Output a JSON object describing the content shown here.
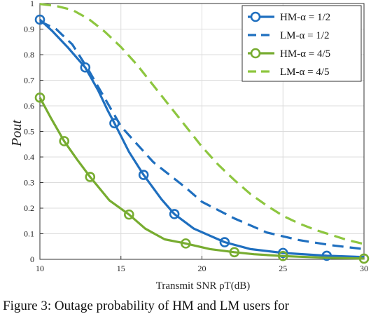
{
  "chart_data": {
    "type": "line",
    "title": "",
    "xlabel": "Transmit SNR ρT(dB)",
    "ylabel": "Pout",
    "xlim": [
      10,
      30
    ],
    "ylim": [
      0,
      1
    ],
    "xticks": [
      10,
      15,
      20,
      25,
      30
    ],
    "yticks": [
      0,
      0.1,
      0.2,
      0.3,
      0.4,
      0.5,
      0.6,
      0.7,
      0.8,
      0.9,
      1
    ],
    "grid": true,
    "legend_position": "top-right",
    "series": [
      {
        "name": "HM-α = 1/2",
        "color": "#1f6fbf",
        "style": "solid",
        "marker": "circle",
        "x": [
          10,
          10.8,
          11.7,
          12.8,
          13.6,
          14.2,
          14.6,
          15.5,
          16.4,
          17.5,
          18.3,
          19.5,
          21.4,
          23,
          25,
          27.7,
          30
        ],
        "y": [
          0.937,
          0.89,
          0.83,
          0.75,
          0.66,
          0.58,
          0.532,
          0.42,
          0.33,
          0.235,
          0.177,
          0.12,
          0.067,
          0.04,
          0.025,
          0.014,
          0.009
        ]
      },
      {
        "name": "LM-α = 1/2",
        "color": "#1f6fbf",
        "style": "dashed",
        "marker": "none",
        "x": [
          10,
          11,
          12,
          13,
          14,
          15,
          16,
          17,
          18,
          19,
          20,
          22,
          24,
          26,
          28,
          30
        ],
        "y": [
          0.93,
          0.9,
          0.84,
          0.74,
          0.63,
          0.52,
          0.45,
          0.38,
          0.33,
          0.28,
          0.225,
          0.16,
          0.105,
          0.075,
          0.055,
          0.04
        ]
      },
      {
        "name": "HM-α = 4/5",
        "color": "#77ac30",
        "style": "solid",
        "marker": "circle",
        "x": [
          10,
          10.7,
          11.5,
          12.3,
          13.1,
          14.3,
          15.5,
          16.5,
          17.7,
          19,
          20.5,
          22,
          23.2,
          25,
          27.7,
          30
        ],
        "y": [
          0.632,
          0.55,
          0.462,
          0.39,
          0.322,
          0.23,
          0.175,
          0.12,
          0.078,
          0.062,
          0.04,
          0.028,
          0.02,
          0.013,
          0.006,
          0.003
        ]
      },
      {
        "name": "LM-α = 4/5",
        "color": "#8dc63f",
        "style": "dashed",
        "marker": "none",
        "x": [
          10,
          11,
          12,
          13,
          14,
          15,
          16,
          17,
          18,
          19,
          20,
          21,
          22,
          23,
          24,
          25,
          26,
          27,
          28,
          29,
          30
        ],
        "y": [
          0.998,
          0.99,
          0.975,
          0.94,
          0.89,
          0.83,
          0.76,
          0.68,
          0.6,
          0.52,
          0.44,
          0.37,
          0.31,
          0.255,
          0.21,
          0.17,
          0.14,
          0.115,
          0.095,
          0.075,
          0.06
        ]
      }
    ]
  },
  "caption": "Figure 3: Outage probability of HM and LM users for"
}
